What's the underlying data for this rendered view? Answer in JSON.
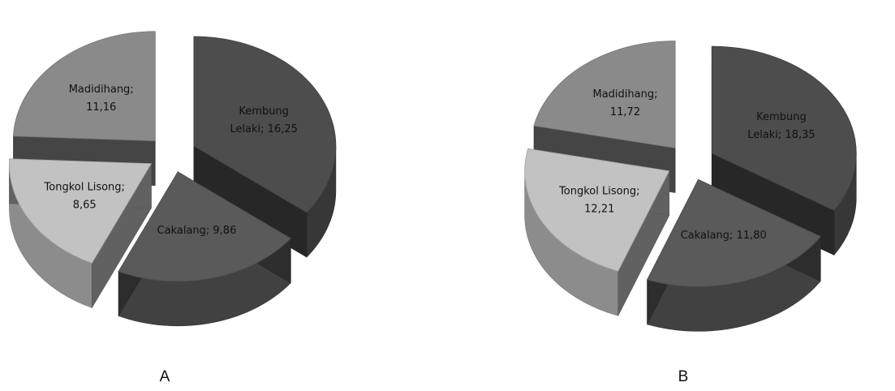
{
  "chart_data": [
    {
      "type": "pie",
      "style": "3d-exploded",
      "panel_label": "A",
      "series": [
        {
          "name": "Kembung Lelaki",
          "value": 16.25,
          "label_lines": [
            "Kembung",
            "Lelaki; 16,25"
          ],
          "color": "#4d4d4d"
        },
        {
          "name": "Cakalang",
          "value": 9.86,
          "label_lines": [
            "Cakalang; 9,86"
          ],
          "color": "#5a5a5a"
        },
        {
          "name": "Tongkol Lisong",
          "value": 8.65,
          "label_lines": [
            "Tongkol Lisong;",
            "8,65"
          ],
          "color": "#c2c2c2"
        },
        {
          "name": "Madidihang",
          "value": 11.16,
          "label_lines": [
            "Madidihang;",
            "11,16"
          ],
          "color": "#8a8a8a"
        }
      ]
    },
    {
      "type": "pie",
      "style": "3d-exploded",
      "panel_label": "B",
      "series": [
        {
          "name": "Kembung Lelaki",
          "value": 18.35,
          "label_lines": [
            "Kembung",
            "Lelaki; 18,35"
          ],
          "color": "#4d4d4d"
        },
        {
          "name": "Cakalang",
          "value": 11.8,
          "label_lines": [
            "Cakalang; 11,80"
          ],
          "color": "#5a5a5a"
        },
        {
          "name": "Tongkol Lisong",
          "value": 12.21,
          "label_lines": [
            "Tongkol Lisong;",
            "12,21"
          ],
          "color": "#c2c2c2"
        },
        {
          "name": "Madidihang",
          "value": 11.72,
          "label_lines": [
            "Madidihang;",
            "11,72"
          ],
          "color": "#8a8a8a"
        }
      ]
    }
  ]
}
